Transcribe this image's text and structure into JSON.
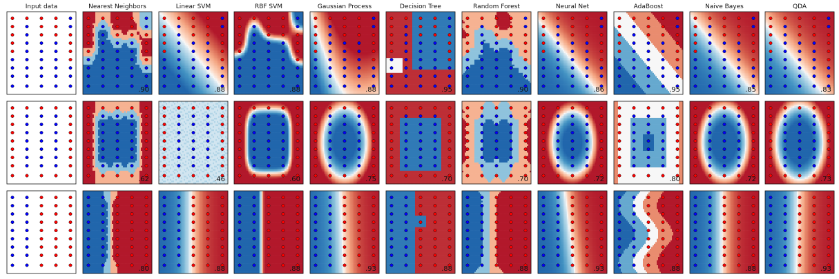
{
  "colors": {
    "red": "#FF0000",
    "blue": "#0000FF",
    "bg_red": "#b2182b",
    "bg_blue": "#2166ac"
  },
  "chart_data": {
    "type": "scatter",
    "columns": [
      "Input data",
      "Nearest Neighbors",
      "Linear SVM",
      "RBF SVM",
      "Gaussian Process",
      "Decision Tree",
      "Random Forest",
      "Neural Net",
      "AdaBoost",
      "Naive Bayes",
      "QDA"
    ],
    "scores": [
      [
        ".90",
        ".88",
        ".88",
        ".88",
        ".95",
        ".90",
        ".86",
        ".95",
        ".85",
        ".83"
      ],
      [
        ".62",
        ".46",
        ".60",
        ".75",
        ".70",
        ".70",
        ".72",
        ".80",
        ".72",
        ".73"
      ],
      [
        ".80",
        ".88",
        ".88",
        ".93",
        ".88",
        ".88",
        ".93",
        ".88",
        ".88",
        ".93"
      ]
    ],
    "grid": {
      "xs": [
        0.08,
        0.29,
        0.5,
        0.71,
        0.92
      ],
      "ys": [
        0.08,
        0.18,
        0.28,
        0.38,
        0.48,
        0.58,
        0.68,
        0.78,
        0.9
      ]
    },
    "datasets": [
      {
        "name": "",
        "labels": [
          "RRRRB",
          "RBRRB",
          "RBRRR",
          "RBBBR",
          "RBBBR",
          "BBBBR",
          "BBBBB",
          "BBBBB",
          "BBBBB"
        ]
      },
      {
        "name": "",
        "labels": [
          "RRRRR",
          "RBBBR",
          "RBBBR",
          "RBBBR",
          "RBBBR",
          "RBBBR",
          "RBBBR",
          "RBBBR",
          "RRRRR"
        ]
      },
      {
        "name": "",
        "labels": [
          "BBRRR",
          "BBRRR",
          "BBRRR",
          "BBRRR",
          "BBRRR",
          "BBRRR",
          "BBRRR",
          "BBRRR",
          "BBRRR"
        ]
      }
    ]
  }
}
